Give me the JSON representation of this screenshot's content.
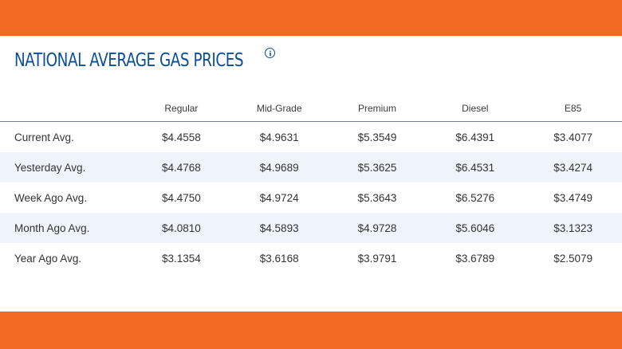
{
  "header": {
    "title": "NATIONAL AVERAGE GAS PRICES",
    "info_icon": "info-circle-icon"
  },
  "colors": {
    "band": "#f26a22",
    "title": "#0b4f94",
    "alt_row": "#eef4fa"
  },
  "table": {
    "columns": [
      "",
      "Regular",
      "Mid-Grade",
      "Premium",
      "Diesel",
      "E85"
    ],
    "rows": [
      {
        "label": "Current Avg.",
        "values": [
          "$4.4558",
          "$4.9631",
          "$5.3549",
          "$6.4391",
          "$3.4077"
        ]
      },
      {
        "label": "Yesterday Avg.",
        "values": [
          "$4.4768",
          "$4.9689",
          "$5.3625",
          "$6.4531",
          "$3.4274"
        ]
      },
      {
        "label": "Week Ago Avg.",
        "values": [
          "$4.4750",
          "$4.9724",
          "$5.3643",
          "$6.5276",
          "$3.4749"
        ]
      },
      {
        "label": "Month Ago Avg.",
        "values": [
          "$4.0810",
          "$4.5893",
          "$4.9728",
          "$5.6046",
          "$3.1323"
        ]
      },
      {
        "label": "Year Ago Avg.",
        "values": [
          "$3.1354",
          "$3.6168",
          "$3.9791",
          "$3.6789",
          "$2.5079"
        ]
      }
    ]
  }
}
